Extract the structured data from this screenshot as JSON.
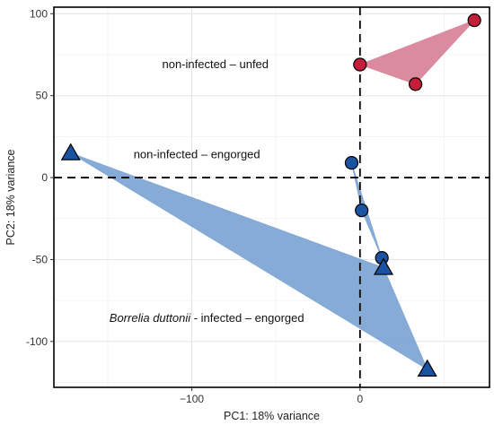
{
  "chart_data": {
    "type": "scatter",
    "title": "",
    "xlabel": "PC1: 18% variance",
    "ylabel": "PC2: 18% variance",
    "xlim": [
      -182,
      77
    ],
    "ylim": [
      -128,
      104
    ],
    "x_ticks": [
      -100,
      0
    ],
    "y_ticks": [
      100,
      50,
      0,
      -50,
      -100
    ],
    "x_tick_labels": [
      "−100",
      "0"
    ],
    "y_tick_labels": [
      "100",
      "50",
      "0",
      "-50",
      "-100"
    ],
    "grid": true,
    "reference_lines": {
      "x": 0,
      "y": 0,
      "style": "dashed"
    },
    "colors": {
      "unfed_fill": "#d9859a",
      "unfed_point": "#c41e3a",
      "engorged_point": "#1b53a3",
      "infected_fill": "#7fa6d4",
      "infected_point": "#1b53a3"
    },
    "series": [
      {
        "group": "non-infected-unfed",
        "marker": "circle",
        "points": [
          {
            "x": 0,
            "y": 69
          },
          {
            "x": 33,
            "y": 57
          },
          {
            "x": 68,
            "y": 96
          }
        ]
      },
      {
        "group": "non-infected-engorged",
        "marker": "circle",
        "points": [
          {
            "x": -5,
            "y": 9
          },
          {
            "x": 1,
            "y": -20
          },
          {
            "x": 13,
            "y": -49
          }
        ]
      },
      {
        "group": "infected-engorged",
        "marker": "triangle",
        "points": [
          {
            "x": -172,
            "y": 15
          },
          {
            "x": 14,
            "y": -55
          },
          {
            "x": 40,
            "y": -117
          }
        ]
      }
    ],
    "annotations": [
      {
        "text": "non-infected – unfed",
        "x": -86,
        "y": 69
      },
      {
        "text": "non-infected – engorged",
        "x": -97,
        "y": 14
      },
      {
        "text_italic": "Borrelia duttonii",
        "text": " - infected – engorged",
        "x": -149,
        "y": -86
      }
    ]
  }
}
